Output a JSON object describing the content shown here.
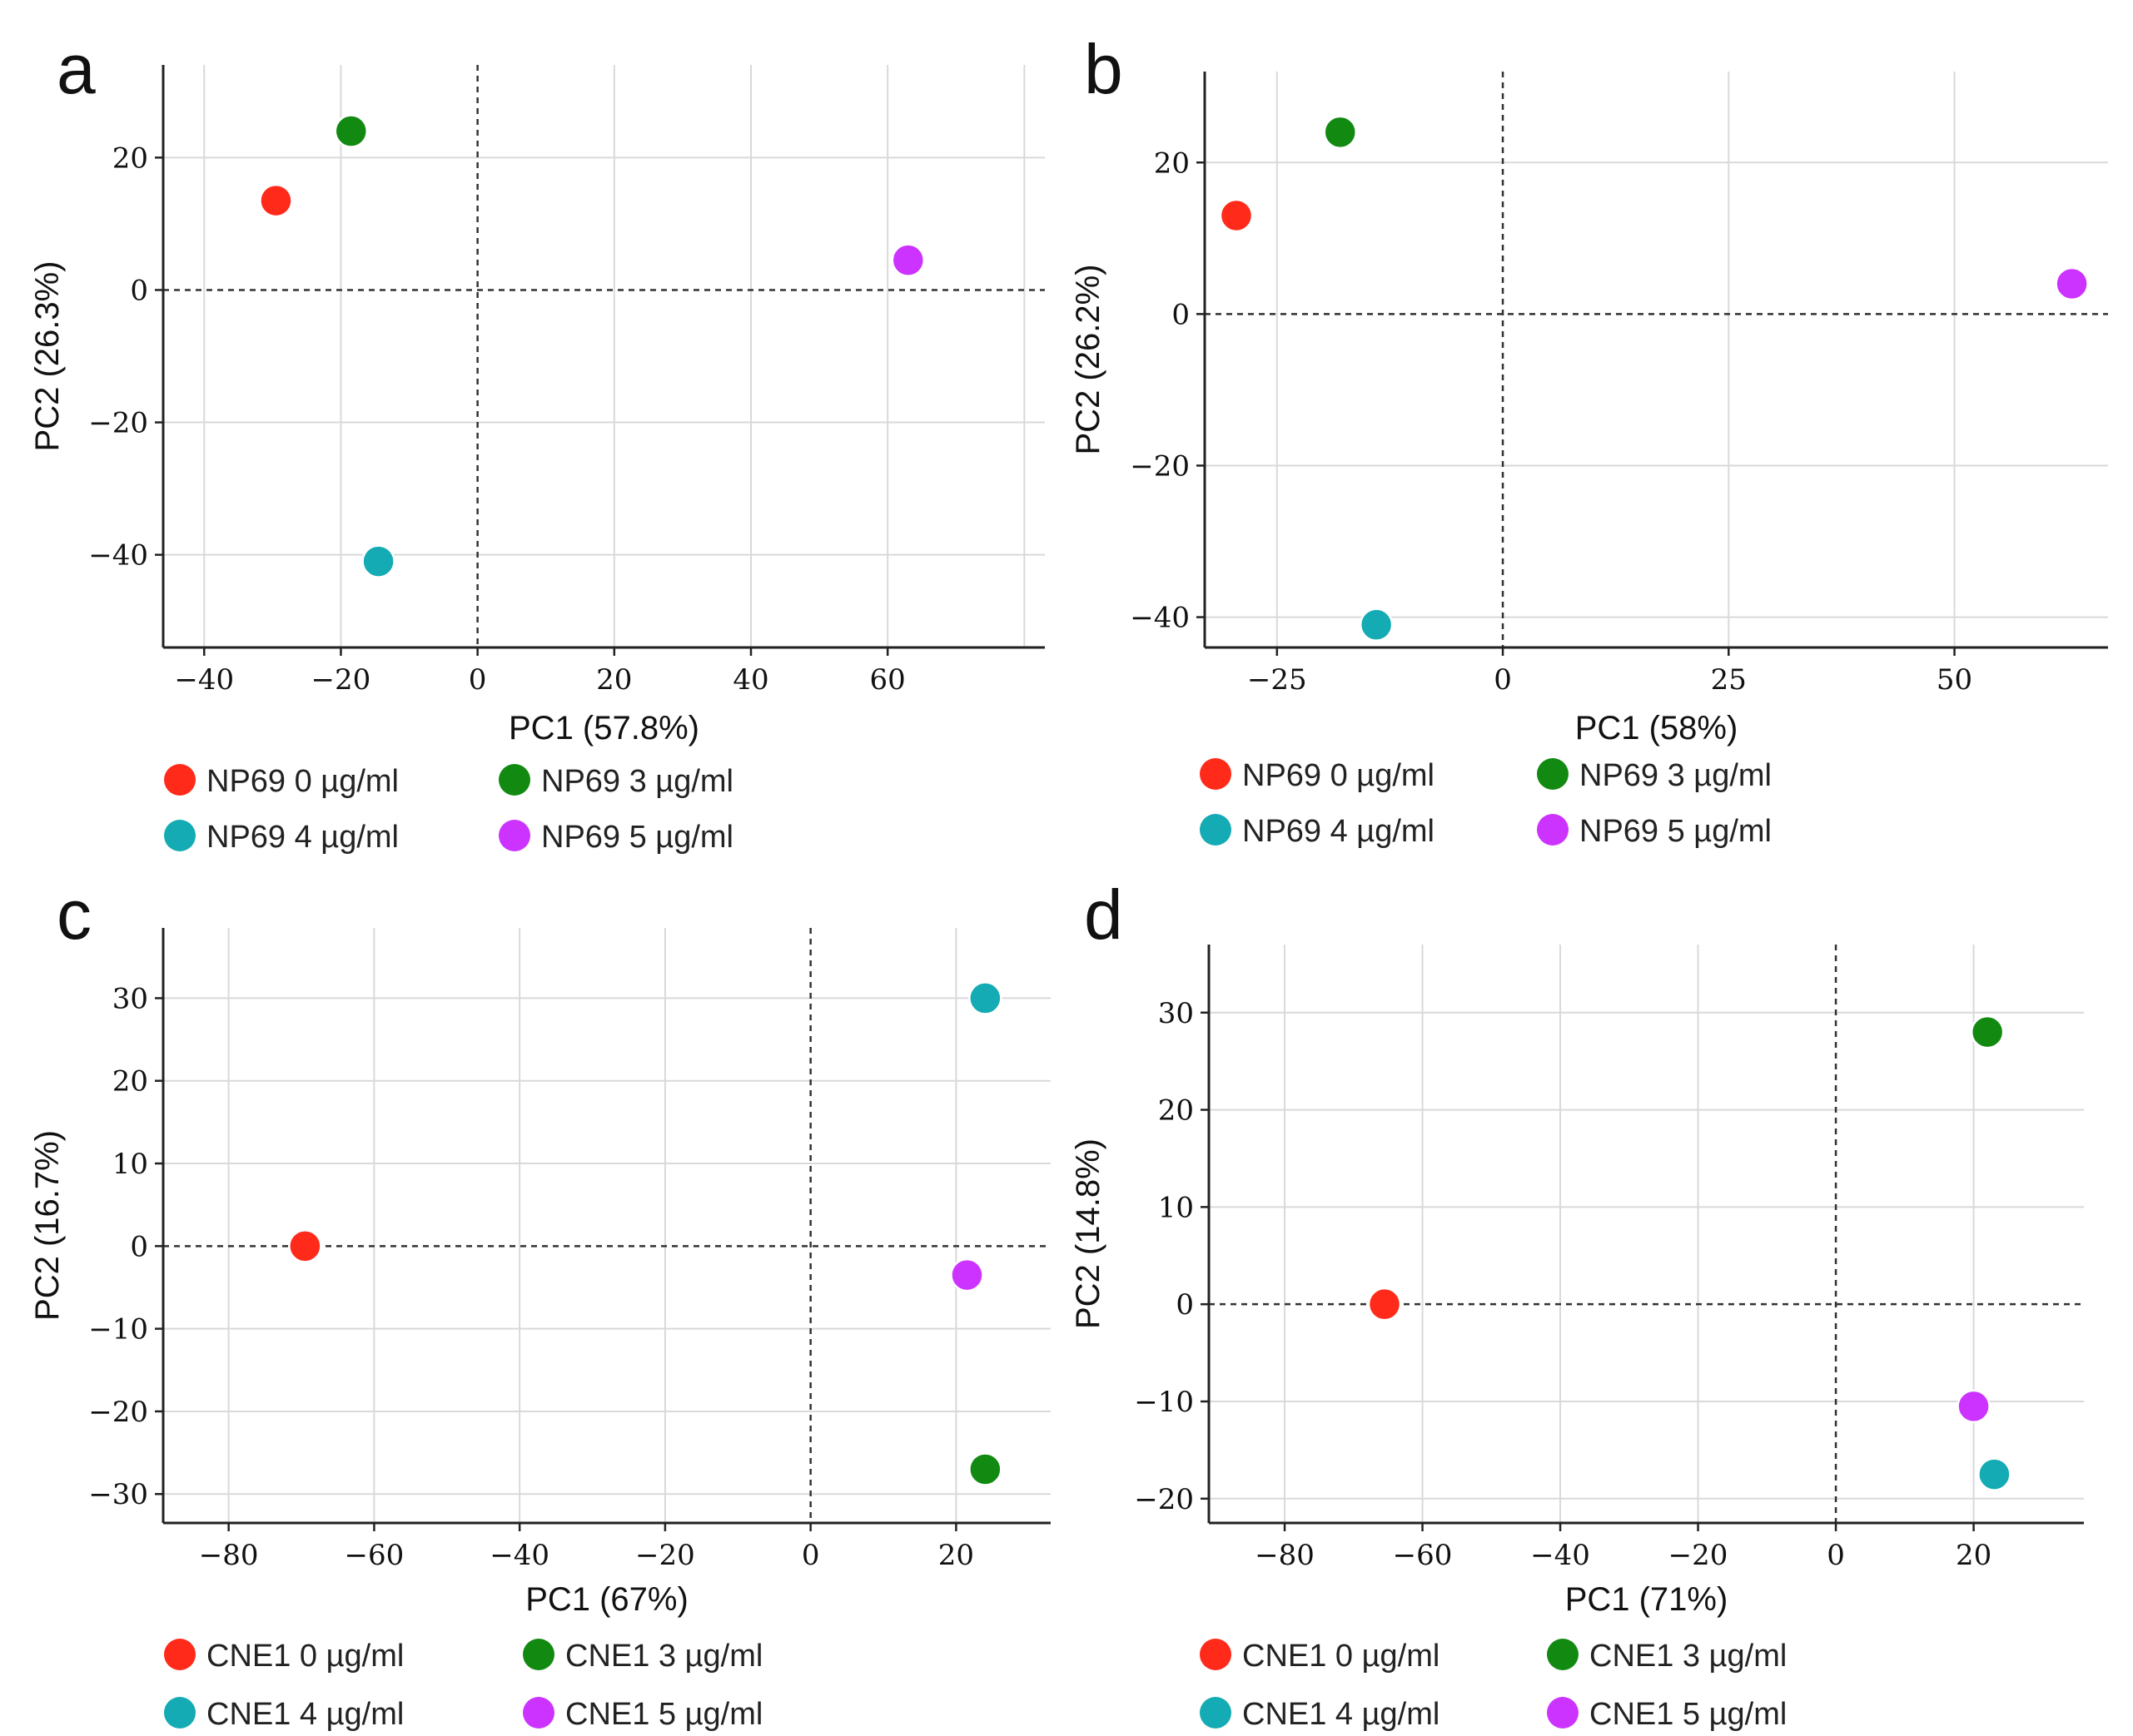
{
  "chart_data": [
    {
      "type": "scatter",
      "panel": "a",
      "xlabel": "PC1 (57.8%)",
      "ylabel": "PC2 (26.3%)",
      "xlim": [
        -46,
        83
      ],
      "ylim": [
        -54,
        34
      ],
      "xticks": [
        -40,
        -20,
        0,
        20,
        40,
        60
      ],
      "yticks": [
        -40,
        -20,
        0,
        20
      ],
      "xtick_labels": [
        "−40",
        "−20",
        "0",
        "20",
        "40",
        "60"
      ],
      "ytick_labels": [
        "−40",
        "−20",
        "0",
        "20"
      ],
      "xgrid": [
        -40,
        -20,
        0,
        20,
        40,
        60,
        80
      ],
      "ygrid": [
        -40,
        -20,
        0,
        20
      ],
      "series": [
        {
          "name": "NP69 0 µg/ml",
          "color": "#ff2a1a",
          "x": -29.5,
          "y": 13.5
        },
        {
          "name": "NP69 3 µg/ml",
          "color": "#128a12",
          "x": -18.5,
          "y": 24
        },
        {
          "name": "NP69 4 µg/ml",
          "color": "#14abb4",
          "x": -14.5,
          "y": -41
        },
        {
          "name": "NP69 5 µg/ml",
          "color": "#cc33ff",
          "x": 63,
          "y": 4.5
        }
      ]
    },
    {
      "type": "scatter",
      "panel": "b",
      "xlabel": "PC1 (58%)",
      "ylabel": "PC2 (26.2%)",
      "xlim": [
        -33,
        67
      ],
      "ylim": [
        -44,
        32
      ],
      "xticks": [
        -25,
        0,
        25,
        50
      ],
      "yticks": [
        -40,
        -20,
        0,
        20
      ],
      "xtick_labels": [
        "−25",
        "0",
        "25",
        "50"
      ],
      "ytick_labels": [
        "−40",
        "−20",
        "0",
        "20"
      ],
      "xgrid": [
        -25,
        0,
        25,
        50
      ],
      "ygrid": [
        -40,
        -20,
        0,
        20
      ],
      "series": [
        {
          "name": "NP69 0 µg/ml",
          "color": "#ff2a1a",
          "x": -29.5,
          "y": 13
        },
        {
          "name": "NP69 3 µg/ml",
          "color": "#128a12",
          "x": -18,
          "y": 24
        },
        {
          "name": "NP69 4 µg/ml",
          "color": "#14abb4",
          "x": -14,
          "y": -41
        },
        {
          "name": "NP69 5 µg/ml",
          "color": "#cc33ff",
          "x": 63,
          "y": 4
        }
      ]
    },
    {
      "type": "scatter",
      "panel": "c",
      "xlabel": "PC1 (67%)",
      "ylabel": "PC2 (16.7%)",
      "xlim": [
        -89,
        33
      ],
      "ylim": [
        -33.5,
        38.5
      ],
      "xticks": [
        -80,
        -60,
        -40,
        -20,
        0,
        20
      ],
      "yticks": [
        -30,
        -20,
        -10,
        0,
        10,
        20,
        30
      ],
      "xtick_labels": [
        "−80",
        "−60",
        "−40",
        "−20",
        "0",
        "20"
      ],
      "ytick_labels": [
        "−30",
        "−20",
        "−10",
        "0",
        "10",
        "20",
        "30"
      ],
      "xgrid": [
        -80,
        -60,
        -40,
        -20,
        0,
        20
      ],
      "ygrid": [
        -30,
        -20,
        -10,
        0,
        10,
        20,
        30
      ],
      "series": [
        {
          "name": "CNE1 0 µg/ml",
          "color": "#ff2a1a",
          "x": -69.5,
          "y": 0
        },
        {
          "name": "CNE1 3 µg/ml",
          "color": "#128a12",
          "x": 24,
          "y": -27
        },
        {
          "name": "CNE1 4 µg/ml",
          "color": "#14abb4",
          "x": 24,
          "y": 30
        },
        {
          "name": "CNE1 5 µg/ml",
          "color": "#cc33ff",
          "x": 21.5,
          "y": -3.5
        }
      ]
    },
    {
      "type": "scatter",
      "panel": "d",
      "xlabel": "PC1 (71%)",
      "ylabel": "PC2 (14.8%)",
      "xlim": [
        -91,
        36
      ],
      "ylim": [
        -22.5,
        37
      ],
      "xticks": [
        -80,
        -60,
        -40,
        -20,
        0,
        20
      ],
      "yticks": [
        -20,
        -10,
        0,
        10,
        20,
        30
      ],
      "xtick_labels": [
        "−80",
        "−60",
        "−40",
        "−20",
        "0",
        "20"
      ],
      "ytick_labels": [
        "−20",
        "−10",
        "0",
        "10",
        "20",
        "30"
      ],
      "xgrid": [
        -80,
        -60,
        -40,
        -20,
        0,
        20
      ],
      "ygrid": [
        -20,
        -10,
        0,
        10,
        20,
        30
      ],
      "series": [
        {
          "name": "CNE1 0 µg/ml",
          "color": "#ff2a1a",
          "x": -65.5,
          "y": 0
        },
        {
          "name": "CNE1 3 µg/ml",
          "color": "#128a12",
          "x": 22,
          "y": 28
        },
        {
          "name": "CNE1 4 µg/ml",
          "color": "#14abb4",
          "x": 23,
          "y": -17.5
        },
        {
          "name": "CNE1 5 µg/ml",
          "color": "#cc33ff",
          "x": 20,
          "y": -10.5
        }
      ]
    }
  ]
}
